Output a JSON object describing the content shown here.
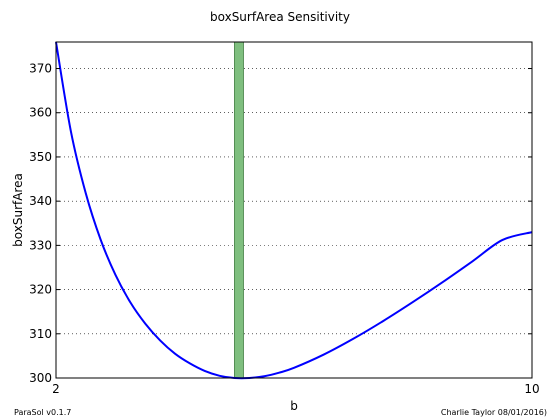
{
  "chart_data": {
    "type": "line",
    "title": "boxSurfArea Sensitivity",
    "xlabel": "b",
    "ylabel": "boxSurfArea",
    "xlim": [
      2,
      10
    ],
    "ylim": [
      300,
      376
    ],
    "x_ticks": [
      2,
      10
    ],
    "y_ticks": [
      300,
      310,
      320,
      330,
      340,
      350,
      360,
      370
    ],
    "grid": "horizontal-dotted",
    "line_color": "#0000ff",
    "band_color": "#7fbf7f",
    "series": [
      {
        "x": [
          2.0,
          2.25,
          2.5,
          2.75,
          3.0,
          3.25,
          3.5,
          3.75,
          4.0,
          4.25,
          4.5,
          4.75,
          5.0,
          5.25,
          5.5,
          5.75,
          6.0,
          6.5,
          7.0,
          7.5,
          8.0,
          8.5,
          9.0,
          9.5,
          10.0
        ],
        "y": [
          376.0,
          355.8,
          341.8,
          331.3,
          323.3,
          317.1,
          312.3,
          308.5,
          305.5,
          303.3,
          301.6,
          300.5,
          300.0,
          300.0,
          300.4,
          301.2,
          302.3,
          305.3,
          308.9,
          312.9,
          317.2,
          321.7,
          326.4,
          331.2,
          333.0
        ]
      }
    ],
    "band": {
      "x_start": 5.0,
      "x_end": 5.15
    }
  },
  "footer": {
    "left": "ParaSol v0.1.7",
    "right": "Charlie Taylor 08/01/2016)"
  }
}
